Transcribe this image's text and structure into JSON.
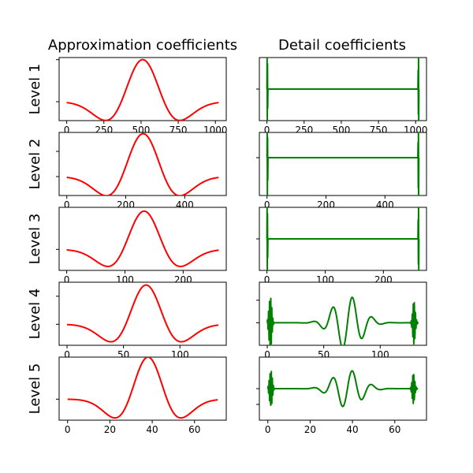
{
  "column_titles": [
    "Approximation coefficients",
    "Detail coefficients"
  ],
  "row_labels": [
    "Level 1",
    "Level 2",
    "Level 3",
    "Level 4",
    "Level 5"
  ],
  "colors": {
    "approximation": "#ff0000",
    "detail": "#008000"
  },
  "chart_data": [
    {
      "type": "line",
      "name": "approximation-level-1",
      "title": "Approximation coefficients",
      "ylabel": "Level 1",
      "x_range": [
        0,
        1022
      ],
      "xlim": [
        -51,
        1073
      ],
      "ylim": [
        -0.9,
        2.1
      ],
      "xticks": [
        0,
        250,
        500,
        750,
        1000
      ],
      "yticks": [
        0,
        2
      ],
      "grid": false,
      "shape": {
        "kind": "wavelet",
        "center": 511,
        "width": 160,
        "amplitude": 2.0
      }
    },
    {
      "type": "line",
      "name": "detail-level-1",
      "title": "Detail coefficients",
      "x_range": [
        0,
        1022
      ],
      "xlim": [
        -51,
        1073
      ],
      "ylim": [
        -1.3,
        1.3
      ],
      "xticks": [
        0,
        250,
        500,
        750,
        1000
      ],
      "yticks": [
        0
      ],
      "grid": false,
      "shape": {
        "kind": "edge-spikes",
        "baseline": 0,
        "spike_high": 1.3,
        "spike_low": -1.3
      }
    },
    {
      "type": "line",
      "name": "approximation-level-2",
      "ylabel": "Level 2",
      "x_range": [
        0,
        515
      ],
      "xlim": [
        -26,
        541
      ],
      "ylim": [
        -0.75,
        1.75
      ],
      "xticks": [
        0,
        200,
        400
      ],
      "yticks": [
        0,
        1
      ],
      "grid": false,
      "shape": {
        "kind": "wavelet",
        "center": 259,
        "width": 80,
        "amplitude": 1.7
      }
    },
    {
      "type": "line",
      "name": "detail-level-2",
      "x_range": [
        0,
        515
      ],
      "xlim": [
        -26,
        541
      ],
      "ylim": [
        -1.5,
        1.0
      ],
      "xticks": [
        0,
        200,
        400
      ],
      "yticks": [
        0
      ],
      "grid": false,
      "shape": {
        "kind": "edge-spikes",
        "baseline": 0,
        "spike_high": 1.0,
        "spike_low": -1.5
      }
    },
    {
      "type": "line",
      "name": "approximation-level-3",
      "ylabel": "Level 3",
      "x_range": [
        0,
        261
      ],
      "xlim": [
        -13,
        274
      ],
      "ylim": [
        -1.1,
        2.2
      ],
      "xticks": [
        0,
        100,
        200
      ],
      "yticks": [
        0
      ],
      "grid": false,
      "shape": {
        "kind": "wavelet",
        "center": 133,
        "width": 40,
        "amplitude": 2.0
      }
    },
    {
      "type": "line",
      "name": "detail-level-3",
      "x_range": [
        0,
        261
      ],
      "xlim": [
        -13,
        274
      ],
      "ylim": [
        -1.3,
        1.3
      ],
      "xticks": [
        0,
        100,
        200
      ],
      "yticks": [
        0
      ],
      "grid": false,
      "shape": {
        "kind": "edge-spikes",
        "baseline": 0,
        "spike_high": 1.3,
        "spike_low": -1.3
      }
    },
    {
      "type": "line",
      "name": "approximation-level-4",
      "ylabel": "Level 4",
      "x_range": [
        0,
        134
      ],
      "xlim": [
        -7,
        141
      ],
      "ylim": [
        -0.75,
        1.5
      ],
      "xticks": [
        0,
        50,
        100
      ],
      "yticks": [
        0,
        1
      ],
      "grid": false,
      "shape": {
        "kind": "wavelet",
        "center": 70,
        "width": 20,
        "amplitude": 1.4
      }
    },
    {
      "type": "line",
      "name": "detail-level-4",
      "x_range": [
        0,
        134
      ],
      "xlim": [
        -7,
        141
      ],
      "ylim": [
        -1.0,
        1.8
      ],
      "xticks": [
        0,
        50,
        100
      ],
      "yticks": [
        0,
        1
      ],
      "grid": false,
      "shape": {
        "kind": "oscillating-detail",
        "baseline": 0
      }
    },
    {
      "type": "line",
      "name": "approximation-level-5",
      "ylabel": "Level 5",
      "x_range": [
        0,
        71
      ],
      "xlim": [
        -4,
        75
      ],
      "ylim": [
        -1.0,
        2.0
      ],
      "xticks": [
        0,
        20,
        40,
        60
      ],
      "yticks": [
        0
      ],
      "grid": false,
      "shape": {
        "kind": "wavelet",
        "center": 38,
        "width": 10,
        "amplitude": 2.0
      }
    },
    {
      "type": "line",
      "name": "detail-level-5",
      "x_range": [
        0,
        71
      ],
      "xlim": [
        -4,
        75
      ],
      "ylim": [
        -2.0,
        2.0
      ],
      "xticks": [
        0,
        20,
        40,
        60
      ],
      "yticks": [
        0,
        -1
      ],
      "grid": false,
      "shape": {
        "kind": "oscillating-detail",
        "baseline": 0
      }
    }
  ]
}
